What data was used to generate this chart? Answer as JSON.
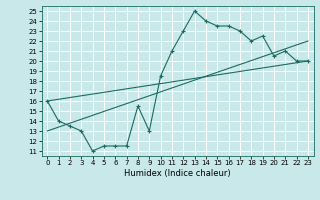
{
  "title": "",
  "xlabel": "Humidex (Indice chaleur)",
  "bg_color": "#c8e8ea",
  "line_color": "#1a6b60",
  "grid_color": "#ffffff",
  "xlim": [
    -0.5,
    23.5
  ],
  "ylim": [
    10.5,
    25.5
  ],
  "yticks": [
    11,
    12,
    13,
    14,
    15,
    16,
    17,
    18,
    19,
    20,
    21,
    22,
    23,
    24,
    25
  ],
  "xticks": [
    0,
    1,
    2,
    3,
    4,
    5,
    6,
    7,
    8,
    9,
    10,
    11,
    12,
    13,
    14,
    15,
    16,
    17,
    18,
    19,
    20,
    21,
    22,
    23
  ],
  "curve_x": [
    0,
    1,
    2,
    3,
    4,
    5,
    6,
    7,
    8,
    9,
    10,
    11,
    12,
    13,
    14,
    15,
    16,
    17,
    18,
    19,
    20,
    21,
    22,
    23
  ],
  "curve_y": [
    16,
    14,
    13.5,
    13,
    11,
    11.5,
    11.5,
    11.5,
    15.5,
    13,
    18.5,
    21,
    23,
    25,
    24,
    23.5,
    23.5,
    23,
    22,
    22.5,
    20.5,
    21,
    20,
    20
  ],
  "line1_x": [
    0,
    23
  ],
  "line1_y": [
    16,
    20
  ],
  "line2_x": [
    0,
    23
  ],
  "line2_y": [
    13,
    22
  ]
}
